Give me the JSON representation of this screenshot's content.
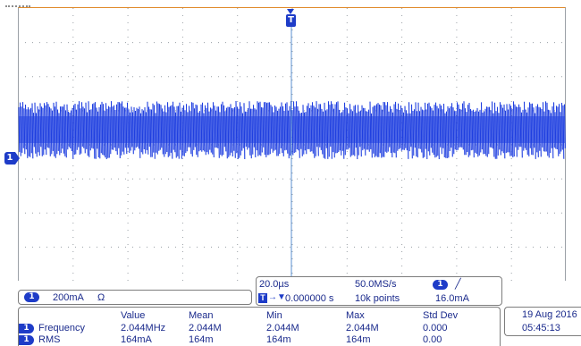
{
  "scope": {
    "colors": {
      "waveform": "#1f3fe0",
      "accent": "#1e3cc8",
      "grid": "#9aa0a6",
      "readout_text": "#1a2a8c",
      "frame_top": "#e08a2a"
    },
    "trigger_marker": "T",
    "ch1_marker": "1"
  },
  "channel": {
    "badge": "1",
    "scale": "200mA",
    "impedance_symbol": "Ω"
  },
  "timebase": {
    "time_per_div": "20.0µs",
    "sample_rate": "50.0MS/s",
    "trigger_position": "0.000000 s",
    "record_length": "10k points",
    "trigger_channel": "1",
    "trigger_slope_symbol": "╱",
    "trigger_level": "16.0mA"
  },
  "measurements": {
    "headers": [
      "Value",
      "Mean",
      "Min",
      "Max",
      "Std Dev"
    ],
    "rows": [
      {
        "badge": "1",
        "name": "Frequency",
        "value": "2.044MHz",
        "mean": "2.044M",
        "min": "2.044M",
        "max": "2.044M",
        "std_dev": "0.000"
      },
      {
        "badge": "1",
        "name": "RMS",
        "value": "164mA",
        "mean": "164m",
        "min": "164m",
        "max": "164m",
        "std_dev": "0.00"
      }
    ]
  },
  "datetime": {
    "date": "19 Aug 2016",
    "time": "05:45:13"
  }
}
